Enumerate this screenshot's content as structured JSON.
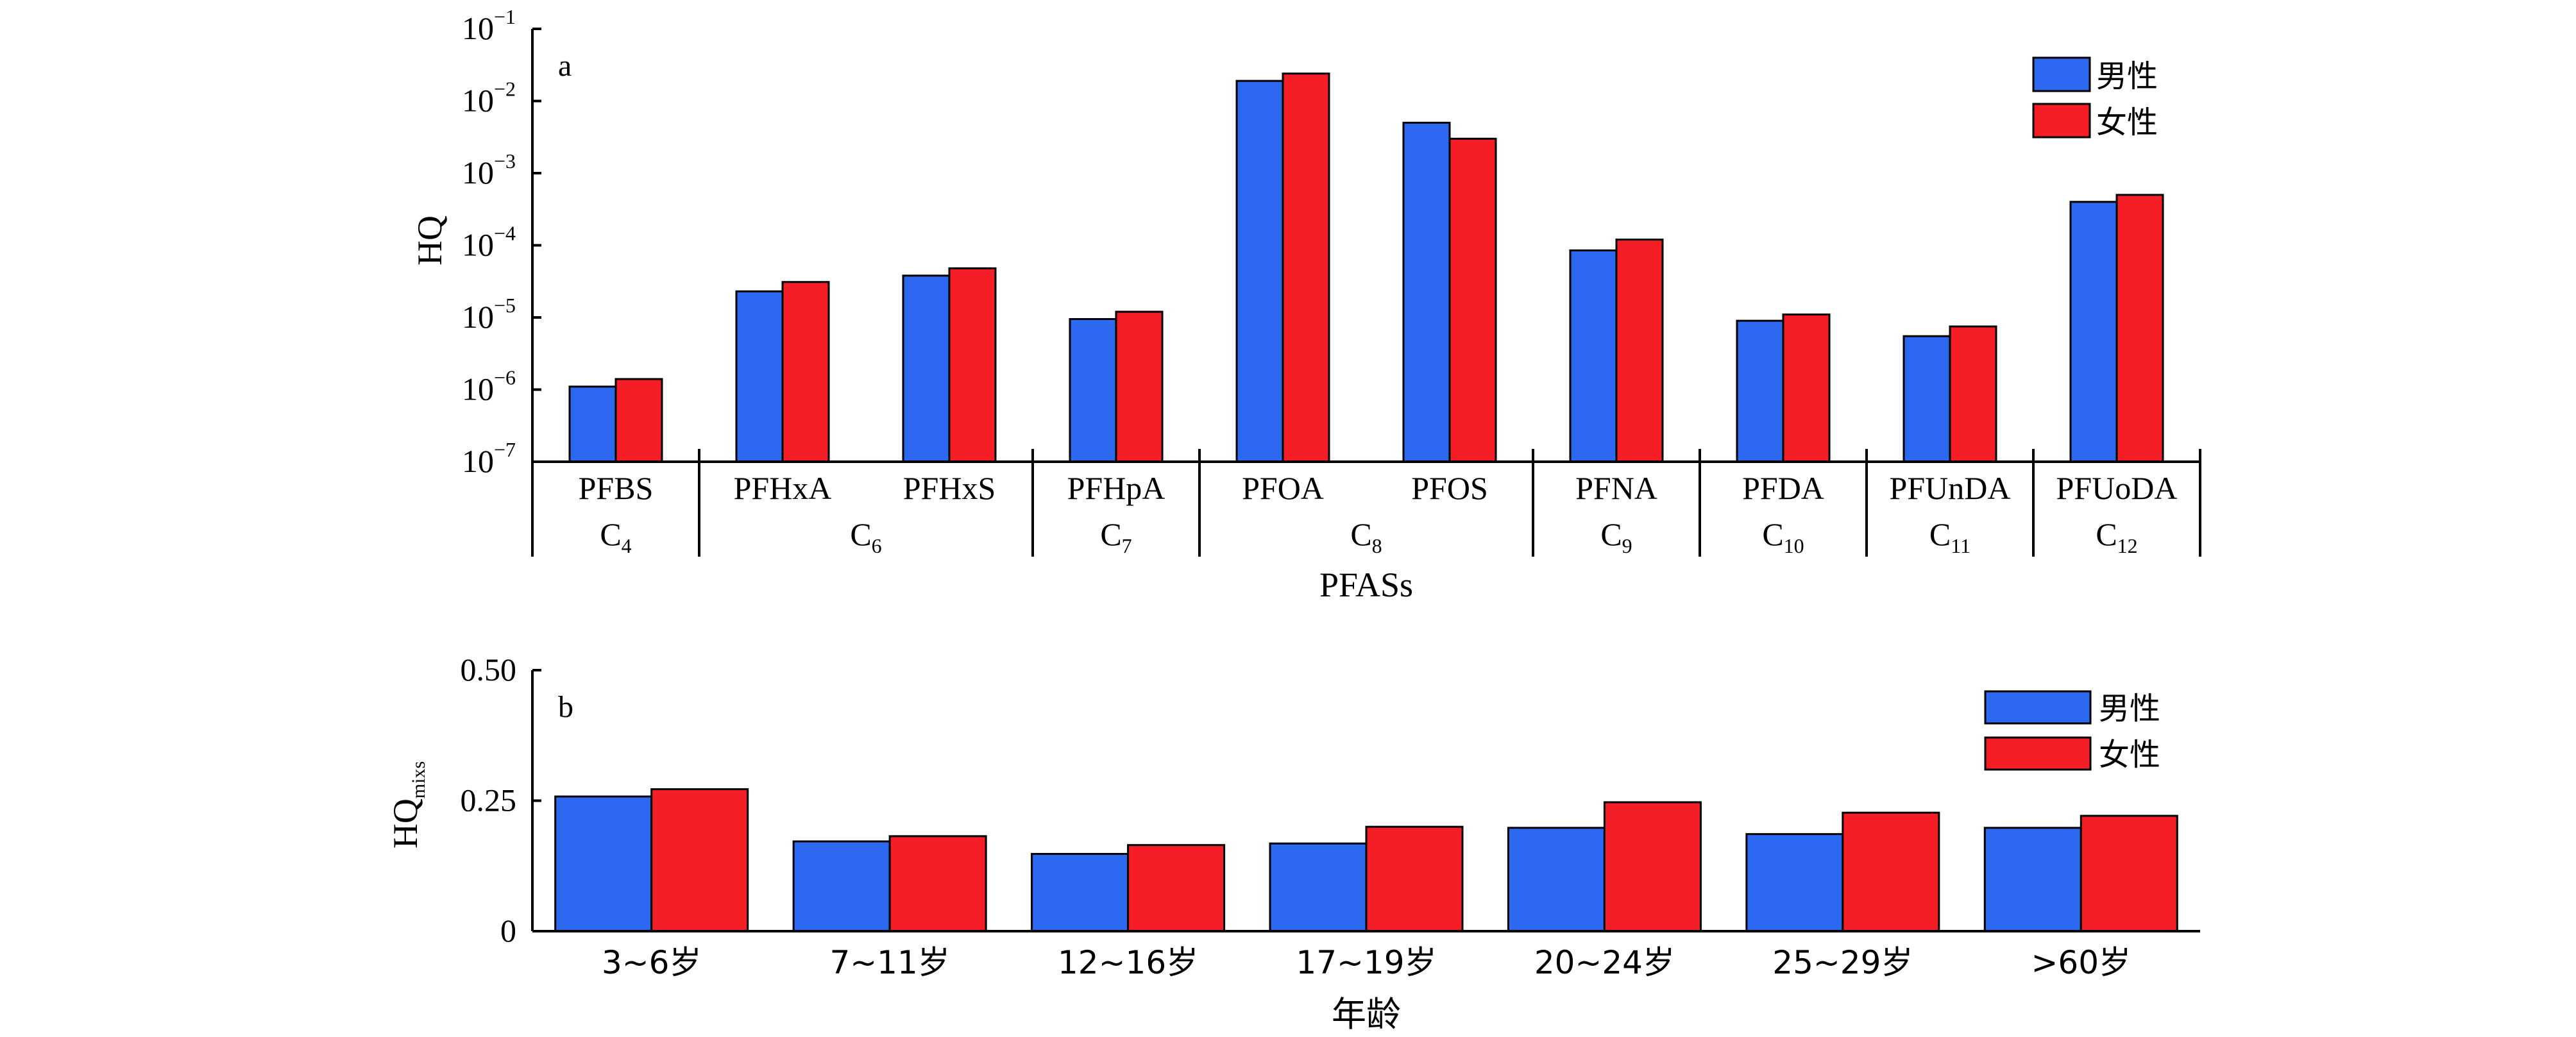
{
  "colors": {
    "male": "#2D68F0",
    "female": "#F51E26",
    "axis": "#000000"
  },
  "chart_data": [
    {
      "type": "bar",
      "panel_letter": "a",
      "yscale": "log",
      "ylim": [
        1e-07,
        0.1
      ],
      "ylabel": "HQ",
      "xlabel": "PFASs",
      "y_ticks": [
        {
          "base": "10",
          "exp": "−7"
        },
        {
          "base": "10",
          "exp": "−6"
        },
        {
          "base": "10",
          "exp": "−5"
        },
        {
          "base": "10",
          "exp": "−4"
        },
        {
          "base": "10",
          "exp": "−3"
        },
        {
          "base": "10",
          "exp": "−2"
        },
        {
          "base": "10",
          "exp": "−1"
        }
      ],
      "categories": [
        "PFBS",
        "PFHxA",
        "PFHxS",
        "PFHpA",
        "PFOA",
        "PFOS",
        "PFNA",
        "PFDA",
        "PFUnDA",
        "PFUoDA"
      ],
      "groups": [
        {
          "base": "C",
          "sub": "4",
          "members": [
            "PFBS"
          ]
        },
        {
          "base": "C",
          "sub": "6",
          "members": [
            "PFHxA",
            "PFHxS"
          ]
        },
        {
          "base": "C",
          "sub": "7",
          "members": [
            "PFHpA"
          ]
        },
        {
          "base": "C",
          "sub": "8",
          "members": [
            "PFOA",
            "PFOS"
          ]
        },
        {
          "base": "C",
          "sub": "9",
          "members": [
            "PFNA"
          ]
        },
        {
          "base": "C",
          "sub": "10",
          "members": [
            "PFDA"
          ]
        },
        {
          "base": "C",
          "sub": "11",
          "members": [
            "PFUnDA"
          ]
        },
        {
          "base": "C",
          "sub": "12",
          "members": [
            "PFUoDA"
          ]
        }
      ],
      "series": [
        {
          "name": "男性",
          "values": [
            1.1e-06,
            2.3e-05,
            3.8e-05,
            9.5e-06,
            0.019,
            0.005,
            8.5e-05,
            9e-06,
            5.5e-06,
            0.0004
          ]
        },
        {
          "name": "女性",
          "values": [
            1.4e-06,
            3.1e-05,
            4.8e-05,
            1.2e-05,
            0.024,
            0.003,
            0.00012,
            1.1e-05,
            7.5e-06,
            0.0005
          ]
        }
      ],
      "legend": "top-right"
    },
    {
      "type": "bar",
      "panel_letter": "b",
      "yscale": "linear",
      "ylim": [
        0,
        0.5
      ],
      "ylabel": "HQ",
      "ylabel_sub": "mixs",
      "xlabel": "年龄",
      "y_ticks": [
        "0",
        "0.25",
        "0.50"
      ],
      "y_tick_values": [
        0,
        0.25,
        0.5
      ],
      "categories": [
        "3~6岁",
        "7~11岁",
        "12~16岁",
        "17~19岁",
        "20~24岁",
        "25~29岁",
        ">60岁"
      ],
      "series": [
        {
          "name": "男性",
          "values": [
            0.258,
            0.172,
            0.148,
            0.168,
            0.198,
            0.186,
            0.198
          ]
        },
        {
          "name": "女性",
          "values": [
            0.272,
            0.182,
            0.165,
            0.2,
            0.247,
            0.227,
            0.221
          ]
        }
      ],
      "legend": "top-right"
    }
  ]
}
